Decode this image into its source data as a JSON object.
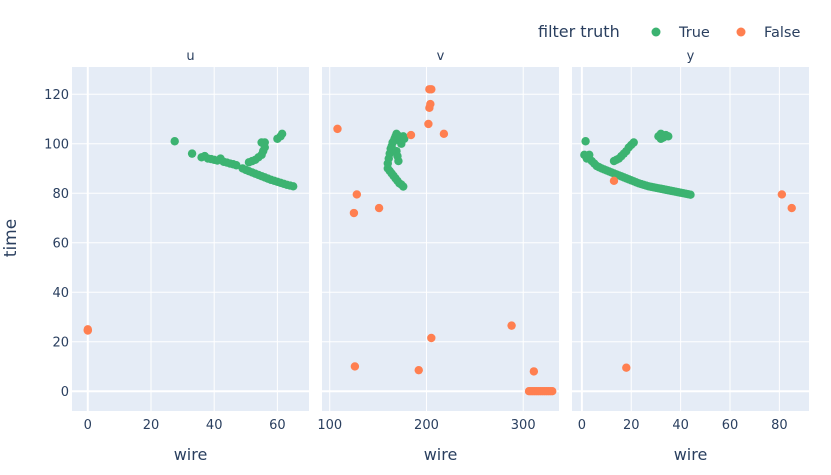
{
  "legend": {
    "title": "filter truth",
    "items": [
      {
        "label": "True",
        "color": "#3cb371"
      },
      {
        "label": "False",
        "color": "#ff7f50"
      }
    ]
  },
  "chart_data": {
    "type": "scatter",
    "ylabel": "time",
    "grid": true,
    "legend_position": "top-right",
    "panels": [
      {
        "title": "u",
        "xlabel": "wire",
        "xlim": [
          -5,
          70
        ],
        "ylim": [
          -8,
          131
        ],
        "xticks": [
          0,
          20,
          40,
          60
        ],
        "yticks": [
          0,
          20,
          40,
          60,
          80,
          100,
          120
        ],
        "series": [
          {
            "name": "True",
            "points": [
              [
                27.5,
                101
              ],
              [
                33,
                96
              ],
              [
                36,
                94.5
              ],
              [
                37,
                95
              ],
              [
                38,
                94
              ],
              [
                39,
                93.8
              ],
              [
                40,
                93.5
              ],
              [
                41,
                93.2
              ],
              [
                42,
                94
              ],
              [
                43,
                92.7
              ],
              [
                44,
                92.4
              ],
              [
                45,
                92
              ],
              [
                46,
                91.7
              ],
              [
                47,
                91.3
              ],
              [
                49,
                90
              ],
              [
                50,
                89.4
              ],
              [
                51,
                88.9
              ],
              [
                52,
                88.4
              ],
              [
                53,
                87.9
              ],
              [
                54,
                87.4
              ],
              [
                55,
                86.9
              ],
              [
                56,
                86.4
              ],
              [
                57,
                85.9
              ],
              [
                58,
                85.4
              ],
              [
                59,
                85
              ],
              [
                60,
                84.6
              ],
              [
                61,
                84.2
              ],
              [
                62,
                83.8
              ],
              [
                63,
                83.4
              ],
              [
                64,
                83.1
              ],
              [
                65,
                82.8
              ],
              [
                51,
                92.5
              ],
              [
                52,
                93
              ],
              [
                53,
                93.5
              ],
              [
                54,
                94.5
              ],
              [
                55,
                95.5
              ],
              [
                55.5,
                97
              ],
              [
                56,
                98.5
              ],
              [
                56,
                100.5
              ],
              [
                55,
                100.5
              ],
              [
                60,
                102
              ],
              [
                61,
                103
              ],
              [
                61.5,
                104
              ]
            ]
          },
          {
            "name": "False",
            "points": [
              [
                0,
                24.5
              ],
              [
                0,
                25
              ]
            ]
          }
        ]
      },
      {
        "title": "v",
        "xlabel": "wire",
        "xlim": [
          92,
          337
        ],
        "ylim": [
          -8,
          131
        ],
        "xticks": [
          100,
          200,
          300
        ],
        "yticks": [
          0,
          20,
          40,
          60,
          80,
          100,
          120
        ],
        "series": [
          {
            "name": "True",
            "points": [
              [
                160,
                90
              ],
              [
                162,
                89
              ],
              [
                164,
                88
              ],
              [
                166,
                87
              ],
              [
                168,
                86
              ],
              [
                170,
                85
              ],
              [
                172,
                84
              ],
              [
                174,
                83.5
              ],
              [
                176,
                82.7
              ],
              [
                160,
                92
              ],
              [
                161,
                94
              ],
              [
                162,
                96
              ],
              [
                163,
                98
              ],
              [
                164,
                99
              ],
              [
                165,
                100.5
              ],
              [
                166,
                101
              ],
              [
                167,
                102
              ],
              [
                168,
                103
              ],
              [
                169,
                104
              ],
              [
                170,
                103.5
              ],
              [
                171,
                103
              ],
              [
                172,
                102
              ],
              [
                173,
                101
              ],
              [
                174,
                100
              ],
              [
                175,
                102.5
              ],
              [
                176,
                103
              ],
              [
                177,
                102
              ],
              [
                169,
                97
              ],
              [
                170,
                95
              ],
              [
                171,
                93
              ]
            ]
          },
          {
            "name": "False",
            "points": [
              [
                108,
                106
              ],
              [
                125,
                72
              ],
              [
                128,
                79.5
              ],
              [
                151,
                74
              ],
              [
                126,
                10
              ],
              [
                184,
                103.5
              ],
              [
                192,
                8.5
              ],
              [
                202,
                108
              ],
              [
                203,
                114.5
              ],
              [
                204,
                116
              ],
              [
                203,
                122
              ],
              [
                205,
                122
              ],
              [
                218,
                104
              ],
              [
                205,
                21.5
              ],
              [
                288,
                26.5
              ],
              [
                311,
                8
              ],
              [
                306,
                0
              ],
              [
                308,
                0
              ],
              [
                310,
                0
              ],
              [
                312,
                0
              ],
              [
                314,
                0
              ],
              [
                316,
                0
              ],
              [
                318,
                0
              ],
              [
                320,
                0
              ],
              [
                322,
                0
              ],
              [
                324,
                0
              ],
              [
                326,
                0
              ],
              [
                328,
                0
              ],
              [
                330,
                0
              ]
            ]
          }
        ]
      },
      {
        "title": "y",
        "xlabel": "wire",
        "xlim": [
          -4,
          92
        ],
        "ylim": [
          -8,
          131
        ],
        "xticks": [
          0,
          20,
          40,
          60,
          80
        ],
        "yticks": [
          0,
          20,
          40,
          60,
          80,
          100,
          120
        ],
        "series": [
          {
            "name": "True",
            "points": [
              [
                1,
                95.5
              ],
              [
                1.5,
                101
              ],
              [
                2,
                94
              ],
              [
                3,
                95.5
              ],
              [
                4,
                93
              ],
              [
                5,
                92
              ],
              [
                6,
                91
              ],
              [
                7,
                90.5
              ],
              [
                8,
                90
              ],
              [
                9,
                89.6
              ],
              [
                10,
                89.2
              ],
              [
                11,
                88.8
              ],
              [
                12,
                88.4
              ],
              [
                13,
                88
              ],
              [
                14,
                87.6
              ],
              [
                15,
                87.2
              ],
              [
                16,
                86.8
              ],
              [
                17,
                86.4
              ],
              [
                18,
                86
              ],
              [
                19,
                85.6
              ],
              [
                20,
                85.2
              ],
              [
                21,
                84.8
              ],
              [
                22,
                84.4
              ],
              [
                23,
                84
              ],
              [
                24,
                83.7
              ],
              [
                25,
                83.4
              ],
              [
                26,
                83.1
              ],
              [
                27,
                82.8
              ],
              [
                28,
                82.6
              ],
              [
                29,
                82.4
              ],
              [
                30,
                82.2
              ],
              [
                31,
                82
              ],
              [
                32,
                81.8
              ],
              [
                33,
                81.6
              ],
              [
                34,
                81.4
              ],
              [
                35,
                81.2
              ],
              [
                36,
                81
              ],
              [
                37,
                80.8
              ],
              [
                38,
                80.6
              ],
              [
                39,
                80.4
              ],
              [
                40,
                80.2
              ],
              [
                41,
                80
              ],
              [
                42,
                79.8
              ],
              [
                43,
                79.6
              ],
              [
                44,
                79.4
              ],
              [
                13,
                93
              ],
              [
                14,
                93.5
              ],
              [
                15,
                94
              ],
              [
                16,
                95
              ],
              [
                17,
                96
              ],
              [
                18,
                97
              ],
              [
                19,
                98.5
              ],
              [
                20,
                99.5
              ],
              [
                21,
                100.5
              ],
              [
                31,
                103
              ],
              [
                32,
                104
              ],
              [
                33,
                102.5
              ],
              [
                34,
                103.5
              ],
              [
                35,
                103
              ],
              [
                32,
                102
              ]
            ]
          },
          {
            "name": "False",
            "points": [
              [
                13,
                85
              ],
              [
                18,
                9.5
              ],
              [
                81,
                79.5
              ],
              [
                85,
                74
              ]
            ]
          }
        ]
      }
    ]
  }
}
